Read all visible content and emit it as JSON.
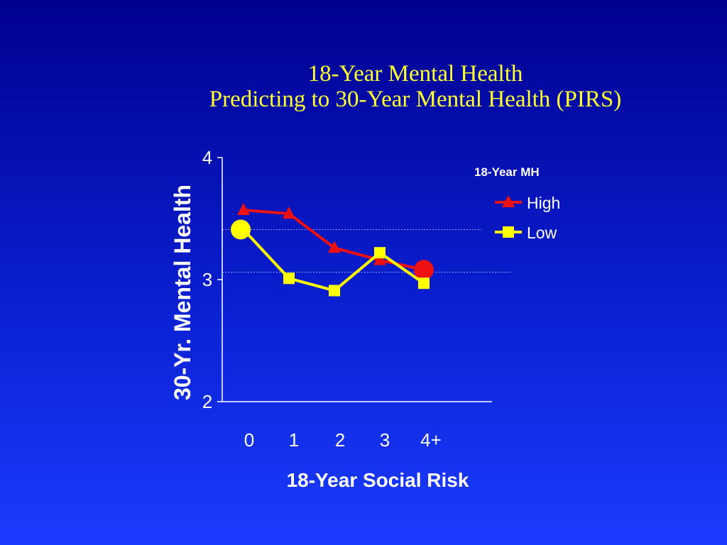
{
  "chart_data": {
    "type": "line",
    "title": [
      "18-Year Mental Health",
      "Predicting to 30-Year Mental Health (PIRS)"
    ],
    "xlabel": "18-Year Social Risk",
    "ylabel": "30-Yr. Mental Health",
    "categories": [
      "0",
      "1",
      "2",
      "3",
      "4+"
    ],
    "yticks": [
      "2",
      "3",
      "4"
    ],
    "ylim": [
      2,
      4
    ],
    "legend_title": "18-Year MH",
    "legend_position": "top-right",
    "reference_lines": [
      3.41,
      3.06
    ],
    "series": [
      {
        "name": "High",
        "values": [
          3.57,
          3.54,
          3.26,
          3.16,
          3.08
        ],
        "color": "#ee1111",
        "marker": "triangle",
        "circle_marker_index": 4
      },
      {
        "name": "Low",
        "values": [
          3.41,
          3.01,
          2.91,
          3.22,
          2.97
        ],
        "color": "#ffff00",
        "marker": "square",
        "circle_marker_index": 0
      }
    ]
  }
}
